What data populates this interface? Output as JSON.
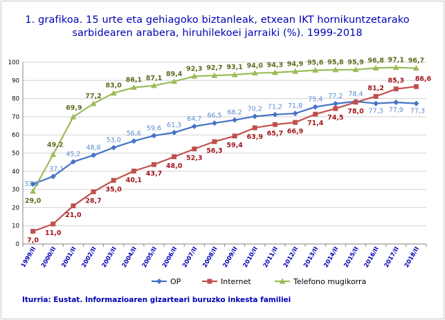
{
  "title": {
    "line1": "1. grafikoa. 15 urte eta gehiagoko biztanleak, etxean IKT hornikuntzetarako",
    "line2": "sarbidearen arabera, hiruhilekoei jarraiki (%). 1999-2018"
  },
  "source": "Iturria: Eustat. Informazioaren gizarteari buruzko inkesta familiei",
  "chart_data": {
    "type": "line",
    "title": "1. grafikoa. 15 urte eta gehiagoko biztanleak, etxean IKT hornikuntzetarako sarbidearen arabera, hiruhilekoei jarraiki (%). 1999-2018",
    "xlabel": "",
    "ylabel": "",
    "ylim": [
      0,
      100
    ],
    "yticks": [
      "0",
      "10",
      "20",
      "30",
      "40",
      "50",
      "60",
      "70",
      "80",
      "90",
      "100"
    ],
    "grid": true,
    "legend_position": "bottom",
    "categories": [
      "1999/II",
      "2000/II",
      "2001/II",
      "2002/II",
      "2003/II",
      "2004/II",
      "2005/II",
      "2006/II",
      "2007/II",
      "2008/II",
      "2009/II",
      "2010/II",
      "2011/II",
      "2012/II",
      "2013/II",
      "2014/II",
      "2015/II",
      "2016/II",
      "2017/II",
      "2018/II"
    ],
    "series": [
      {
        "name": "OP",
        "color": "#4472c4",
        "label_color": "#5b8bd0",
        "marker": "diamond",
        "values": [
          33.0,
          37.1,
          45.2,
          48.8,
          53.0,
          56.6,
          59.6,
          61.3,
          64.7,
          66.5,
          68.2,
          70.2,
          71.2,
          71.8,
          75.4,
          77.2,
          78.4,
          77.3,
          77.9,
          77.3
        ],
        "labels": [
          "33,0",
          "37,1",
          "45,2",
          "48,8",
          "53,0",
          "56,6",
          "59,6",
          "61,3",
          "64,7",
          "66,5",
          "68,2",
          "70,2",
          "71,2",
          "71,8",
          "75,4",
          "77,2",
          "78,4",
          "77,3",
          "77,9",
          "77,3"
        ]
      },
      {
        "name": "Internet",
        "color": "#c0504d",
        "label_color": "#a0161b",
        "marker": "square",
        "values": [
          7.0,
          11.0,
          21.0,
          28.7,
          35.0,
          40.1,
          43.7,
          48.0,
          52.3,
          56.3,
          59.4,
          63.9,
          65.7,
          66.9,
          71.4,
          74.5,
          78.0,
          81.2,
          85.3,
          86.6
        ],
        "labels": [
          "7,0",
          "11,0",
          "21,0",
          "28,7",
          "35,0",
          "40,1",
          "43,7",
          "48,0",
          "52,3",
          "56,3",
          "59,4",
          "63,9",
          "65,7",
          "66,9",
          "71,4",
          "74,5",
          "78,0",
          "81,2",
          "85,3",
          "86,6"
        ]
      },
      {
        "name": "Telefono mugikorra",
        "color": "#9bbb59",
        "label_color": "#5c6b1e",
        "marker": "triangle",
        "values": [
          29.0,
          49.2,
          69.9,
          77.2,
          83.0,
          86.1,
          87.1,
          89.4,
          92.3,
          92.7,
          93.1,
          94.0,
          94.3,
          94.9,
          95.6,
          95.8,
          95.9,
          96.8,
          97.1,
          96.7
        ],
        "labels": [
          "29,0",
          "49,2",
          "69,9",
          "77,2",
          "83,0",
          "86,1",
          "87,1",
          "89,4",
          "92,3",
          "92,7",
          "93,1",
          "94,0",
          "94,3",
          "94,9",
          "95,6",
          "95,8",
          "95,9",
          "96,8",
          "97,1",
          "96,7"
        ]
      }
    ]
  }
}
